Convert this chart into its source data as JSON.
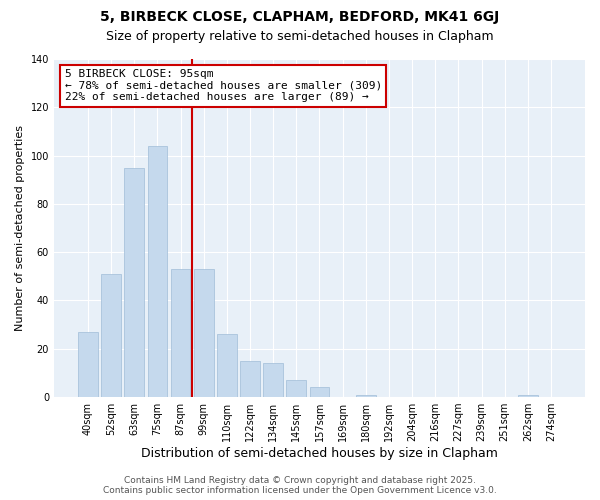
{
  "title": "5, BIRBECK CLOSE, CLAPHAM, BEDFORD, MK41 6GJ",
  "subtitle": "Size of property relative to semi-detached houses in Clapham",
  "xlabel": "Distribution of semi-detached houses by size in Clapham",
  "ylabel": "Number of semi-detached properties",
  "categories": [
    "40sqm",
    "52sqm",
    "63sqm",
    "75sqm",
    "87sqm",
    "99sqm",
    "110sqm",
    "122sqm",
    "134sqm",
    "145sqm",
    "157sqm",
    "169sqm",
    "180sqm",
    "192sqm",
    "204sqm",
    "216sqm",
    "227sqm",
    "239sqm",
    "251sqm",
    "262sqm",
    "274sqm"
  ],
  "values": [
    27,
    51,
    95,
    104,
    53,
    53,
    26,
    15,
    14,
    7,
    4,
    0,
    1,
    0,
    0,
    0,
    0,
    0,
    0,
    1,
    0
  ],
  "bar_color": "#c5d9ed",
  "bar_edge_color": "#a0bdd8",
  "annotation_line1": "5 BIRBECK CLOSE: 95sqm",
  "annotation_line2": "← 78% of semi-detached houses are smaller (309)",
  "annotation_line3": "22% of semi-detached houses are larger (89) →",
  "annotation_box_color": "#ffffff",
  "annotation_box_edge_color": "#cc0000",
  "red_line_color": "#cc0000",
  "red_line_x": 4.5,
  "ylim": [
    0,
    140
  ],
  "yticks": [
    0,
    20,
    40,
    60,
    80,
    100,
    120,
    140
  ],
  "background_color": "#ffffff",
  "plot_background": "#e8f0f8",
  "grid_color": "#ffffff",
  "footer_line1": "Contains HM Land Registry data © Crown copyright and database right 2025.",
  "footer_line2": "Contains public sector information licensed under the Open Government Licence v3.0.",
  "title_fontsize": 10,
  "subtitle_fontsize": 9,
  "xlabel_fontsize": 9,
  "ylabel_fontsize": 8,
  "tick_fontsize": 7,
  "annotation_fontsize": 8,
  "footer_fontsize": 6.5
}
